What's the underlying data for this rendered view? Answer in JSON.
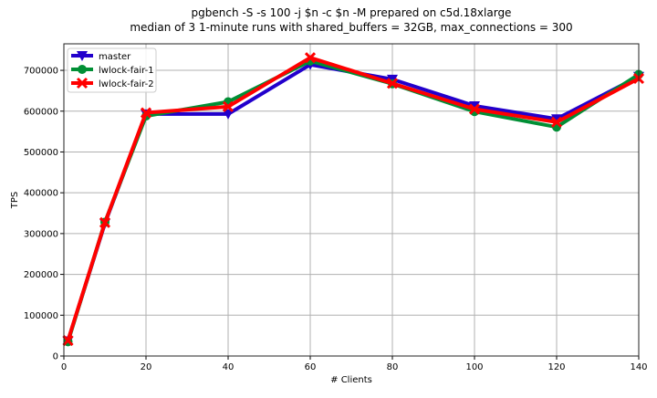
{
  "chart_data": {
    "type": "line",
    "title": "pgbench -S -s 100 -j $n -c $n -M prepared on c5d.18xlarge",
    "subtitle": "median of 3 1-minute runs with shared_buffers = 32GB, max_connections = 300",
    "xlabel": "# Clients",
    "ylabel": "TPS",
    "xlim": [
      0,
      140
    ],
    "ylim": [
      0,
      765000
    ],
    "xticks": [
      0,
      20,
      40,
      60,
      80,
      100,
      120,
      140
    ],
    "yticks": [
      0,
      100000,
      200000,
      300000,
      400000,
      500000,
      600000,
      700000
    ],
    "grid": true,
    "legend": "top-left",
    "x": [
      1,
      10,
      20,
      40,
      60,
      80,
      100,
      120,
      140
    ],
    "series": [
      {
        "name": "master",
        "color": "#2200cc",
        "marker": "triangle-down",
        "values": [
          37000,
          325000,
          593000,
          593000,
          714000,
          678000,
          613000,
          581000,
          685000
        ]
      },
      {
        "name": "lwlock-fair-1",
        "color": "#008f35",
        "marker": "circle",
        "values": [
          35000,
          328000,
          588000,
          623000,
          723000,
          667000,
          599000,
          561000,
          690000
        ]
      },
      {
        "name": "lwlock-fair-2",
        "color": "#ff0000",
        "marker": "x",
        "values": [
          38000,
          327000,
          596000,
          611000,
          731000,
          668000,
          605000,
          573000,
          680000
        ]
      }
    ]
  }
}
